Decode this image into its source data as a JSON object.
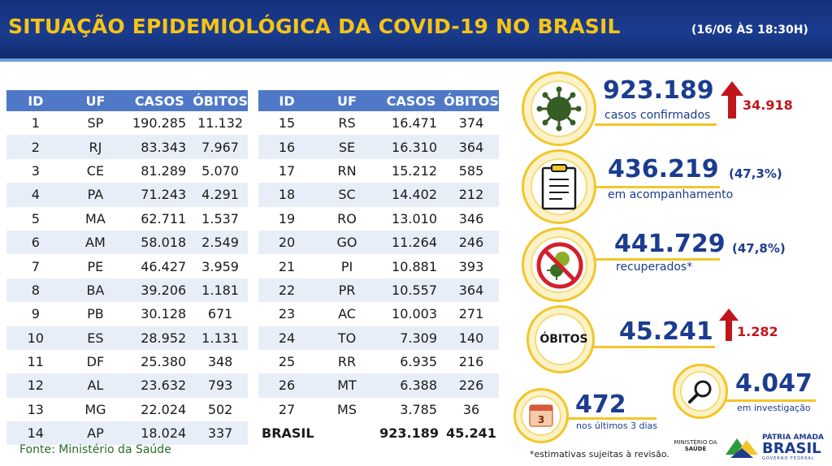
{
  "header": {
    "title": "SITUAÇÃO EPIDEMIOLÓGICA DA COVID-19 NO BRASIL",
    "date": "(16/06 ÀS 18:30H)"
  },
  "table": {
    "headers": [
      "ID",
      "UF",
      "CASOS",
      "ÓBITOS"
    ],
    "left_rows": [
      [
        "1",
        "SP",
        "190.285",
        "11.132"
      ],
      [
        "2",
        "RJ",
        "83.343",
        "7.967"
      ],
      [
        "3",
        "CE",
        "81.289",
        "5.070"
      ],
      [
        "4",
        "PA",
        "71.243",
        "4.291"
      ],
      [
        "5",
        "MA",
        "62.711",
        "1.537"
      ],
      [
        "6",
        "AM",
        "58.018",
        "2.549"
      ],
      [
        "7",
        "PE",
        "46.427",
        "3.959"
      ],
      [
        "8",
        "BA",
        "39.206",
        "1.181"
      ],
      [
        "9",
        "PB",
        "30.128",
        "671"
      ],
      [
        "10",
        "ES",
        "28.952",
        "1.131"
      ],
      [
        "11",
        "DF",
        "25.380",
        "348"
      ],
      [
        "12",
        "AL",
        "23.632",
        "793"
      ],
      [
        "13",
        "MG",
        "22.024",
        "502"
      ],
      [
        "14",
        "AP",
        "18.024",
        "337"
      ]
    ],
    "right_rows": [
      [
        "15",
        "RS",
        "16.471",
        "374"
      ],
      [
        "16",
        "SE",
        "16.310",
        "364"
      ],
      [
        "17",
        "RN",
        "15.212",
        "585"
      ],
      [
        "18",
        "SC",
        "14.402",
        "212"
      ],
      [
        "19",
        "RO",
        "13.010",
        "346"
      ],
      [
        "20",
        "GO",
        "11.264",
        "246"
      ],
      [
        "21",
        "PI",
        "10.881",
        "393"
      ],
      [
        "22",
        "PR",
        "10.557",
        "364"
      ],
      [
        "23",
        "AC",
        "10.003",
        "271"
      ],
      [
        "24",
        "TO",
        "7.309",
        "140"
      ],
      [
        "25",
        "RR",
        "6.935",
        "216"
      ],
      [
        "26",
        "MT",
        "6.388",
        "226"
      ],
      [
        "27",
        "MS",
        "3.785",
        "36"
      ]
    ],
    "total": {
      "label": "BRASIL",
      "cases": "923.189",
      "deaths": "45.241"
    }
  },
  "stats": {
    "confirmed": {
      "value": "923.189",
      "label": "casos confirmados",
      "delta": "34.918",
      "icon": "virus-icon"
    },
    "monitoring": {
      "value": "436.219",
      "pct": "(47,3%)",
      "label": "em acompanhamento",
      "icon": "clipboard-icon"
    },
    "recovered": {
      "value": "441.729",
      "pct": "(47,8%)",
      "label": "recuperados*",
      "icon": "no-virus-icon"
    },
    "deaths": {
      "title": "ÓBITOS",
      "value": "45.241",
      "delta": "1.282"
    },
    "last3": {
      "value": "472",
      "label": "nos últimos 3 dias",
      "icon": "calendar-icon",
      "icon_text": "3"
    },
    "investigation": {
      "value": "4.047",
      "label": "em investigação",
      "icon": "magnifier-icon"
    }
  },
  "source": "Fonte: Ministério da Saúde",
  "note": "*estimativas sujeitas à revisão.",
  "footer": {
    "ministry_line1": "MINISTÉRIO DA",
    "ministry_line2": "SAÚDE",
    "slogan": "PÁTRIA AMADA",
    "brand": "BRASIL",
    "govt": "GOVERNO FEDERAL"
  },
  "colors": {
    "navy": "#1b3c8f",
    "yellow": "#f2c62a",
    "red": "#c0161b",
    "table_header": "#4f79c6",
    "row_alt": "#e8eef8"
  }
}
